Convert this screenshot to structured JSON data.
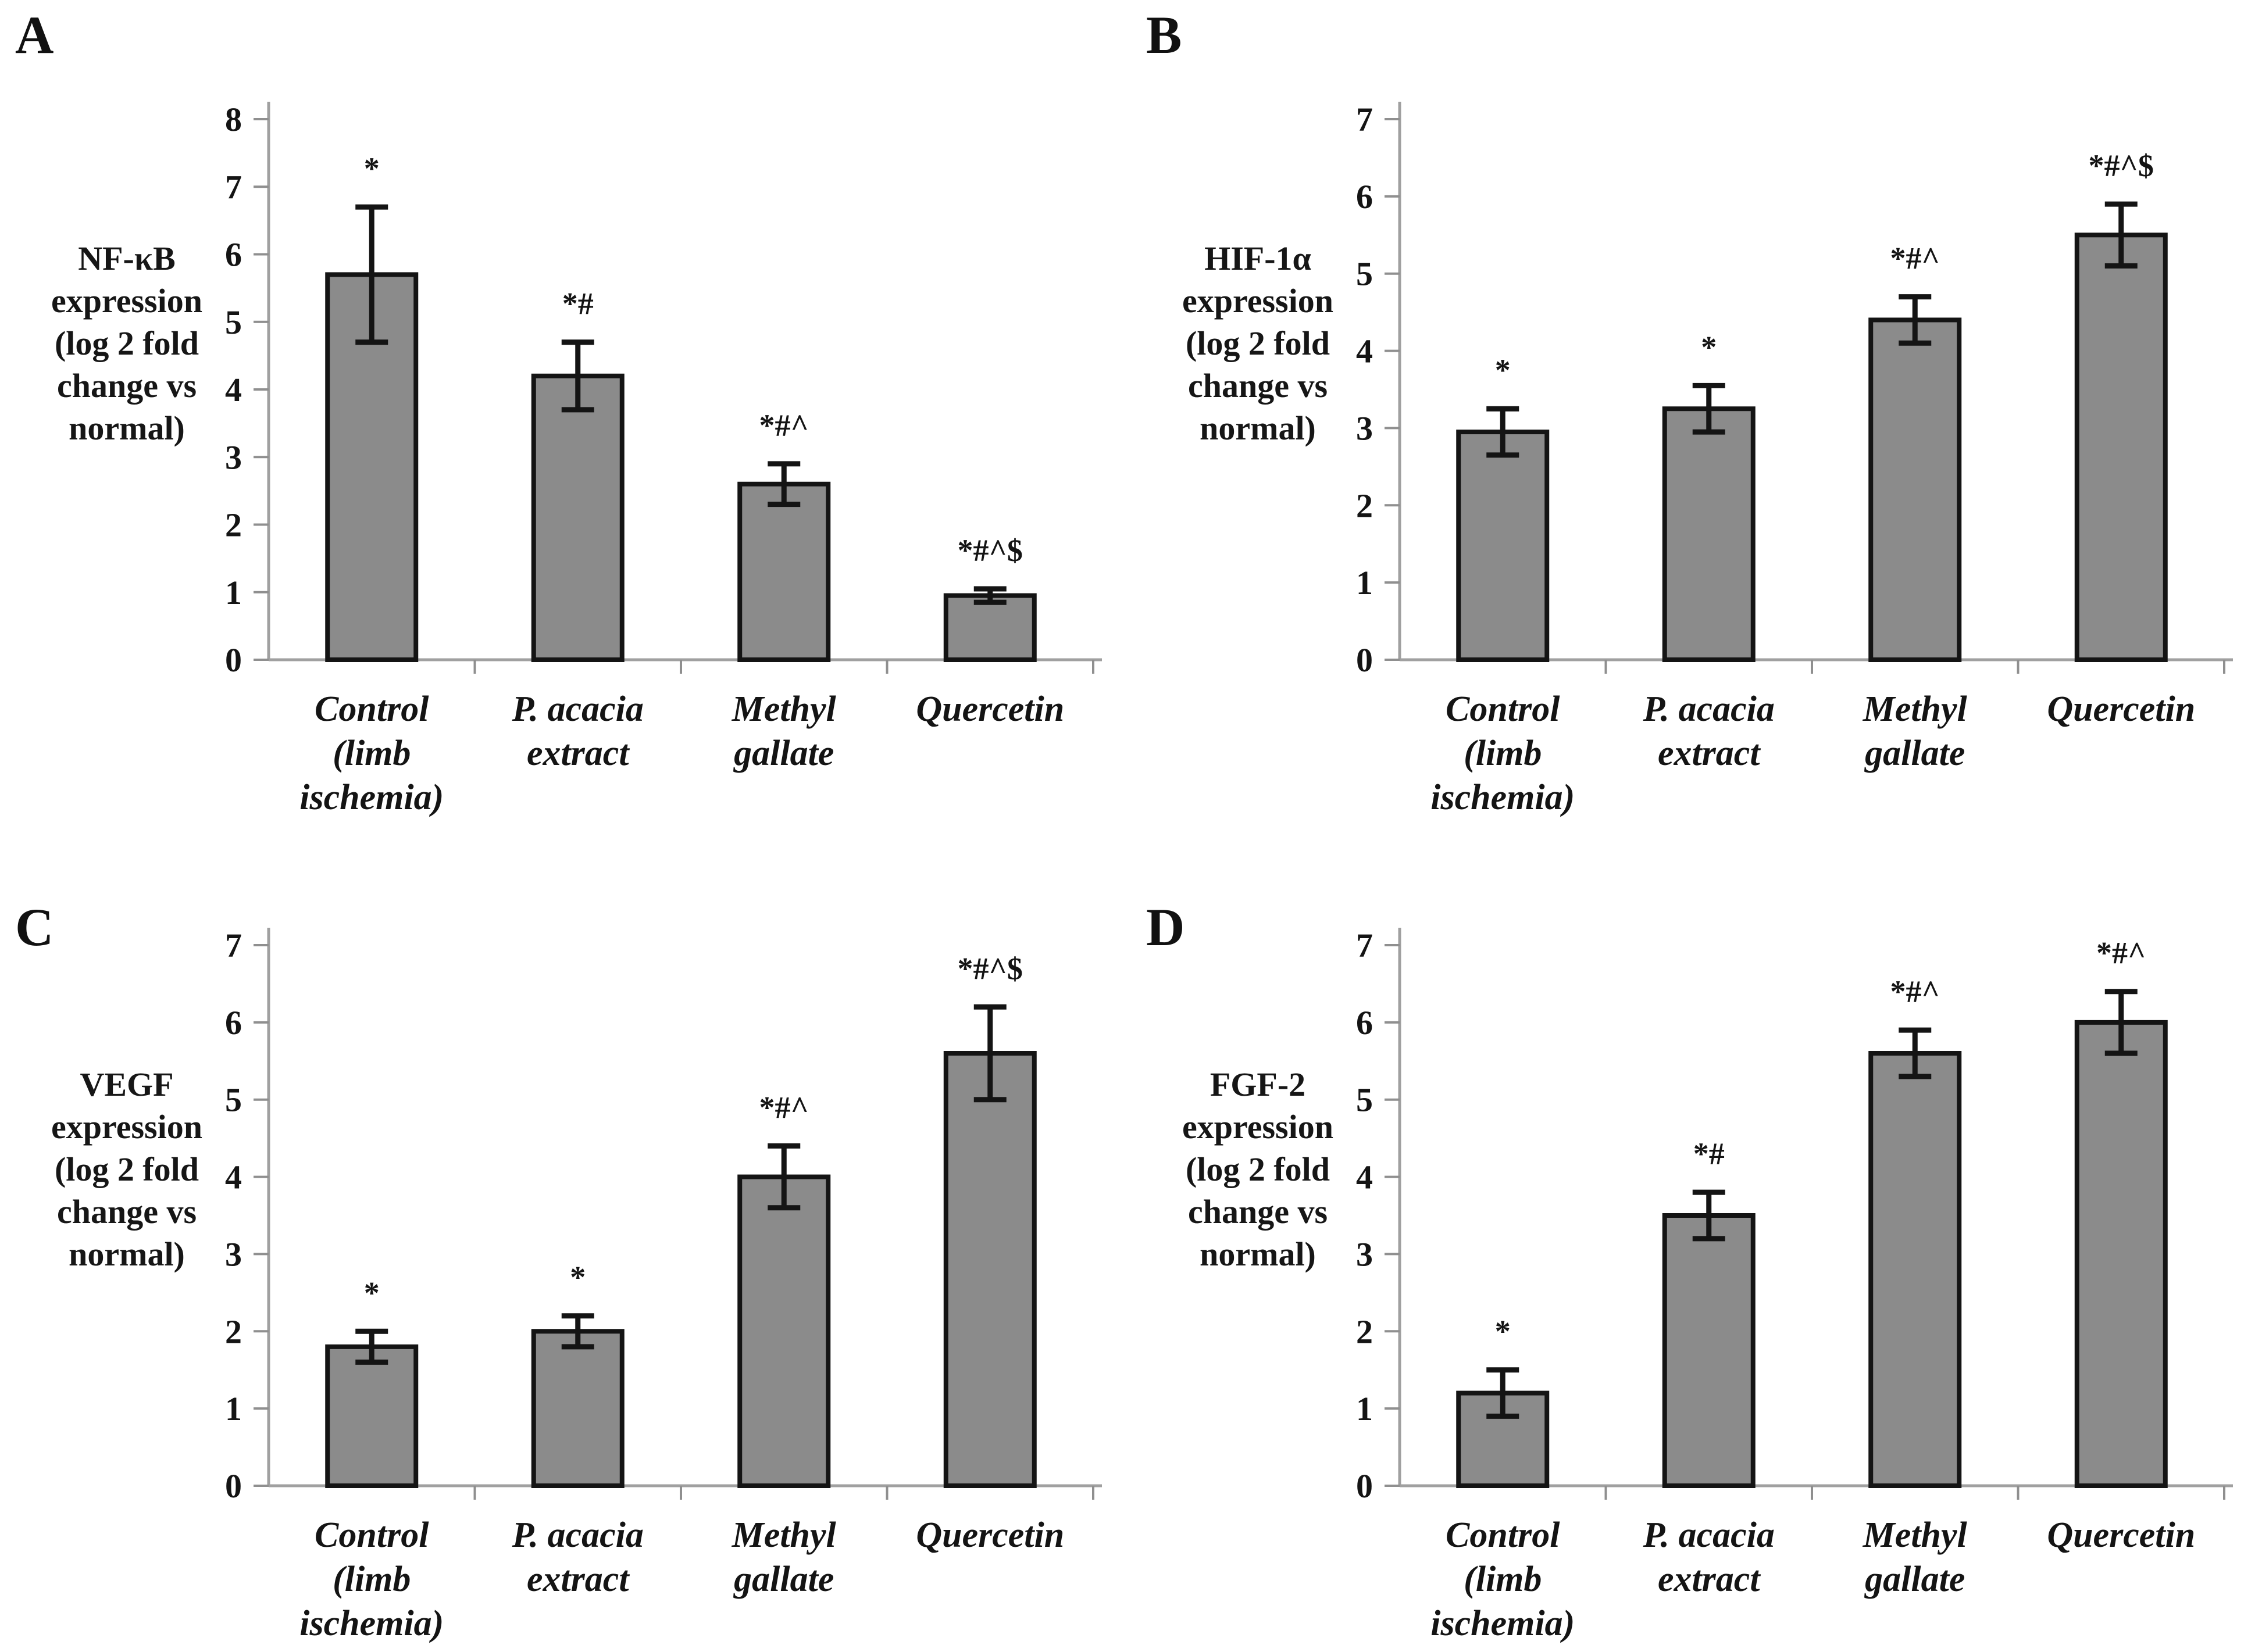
{
  "figure": {
    "background": "#ffffff",
    "description_visible_text_only": true
  },
  "colors": {
    "bar_fill": "#8b8b8b",
    "bar_border": "#141414",
    "error_bar": "#141414",
    "axis_line": "#a0a0a0",
    "tick_line": "#8f8f8f",
    "text": "#141414"
  },
  "categories": [
    "Control (limb ischemia)",
    "P. acacia extract",
    "Methyl gallate",
    "Quercetin"
  ],
  "category_label_lines": [
    [
      "Control",
      "(limb",
      "ischemia)"
    ],
    [
      "P. acacia",
      "extract"
    ],
    [
      "Methyl",
      "gallate"
    ],
    [
      "Quercetin"
    ]
  ],
  "chart_data": [
    {
      "panel_label": "A",
      "type": "bar",
      "title": "",
      "ylabel": "NF-κB expression (log 2 fold change vs normal)",
      "ylabel_lines": [
        "NF-κB",
        "expression",
        "(log 2 fold",
        "change vs",
        "normal)"
      ],
      "xlabel": "",
      "categories": [
        "Control (limb ischemia)",
        "P. acacia extract",
        "Methyl gallate",
        "Quercetin"
      ],
      "values": [
        5.7,
        4.2,
        2.6,
        0.95
      ],
      "errors": [
        1.0,
        0.5,
        0.3,
        0.1
      ],
      "annotations": [
        "*",
        "*#",
        "*#^",
        "*#^$"
      ],
      "ylim": [
        0,
        8
      ],
      "ytick_step": 1,
      "grid": false,
      "legend_position": "none"
    },
    {
      "panel_label": "B",
      "type": "bar",
      "title": "",
      "ylabel": "HIF-1α expression (log 2 fold change vs normal)",
      "ylabel_lines": [
        "HIF-1α",
        "expression",
        "(log 2 fold",
        "change vs",
        "normal)"
      ],
      "xlabel": "",
      "categories": [
        "Control (limb ischemia)",
        "P. acacia extract",
        "Methyl gallate",
        "Quercetin"
      ],
      "values": [
        2.95,
        3.25,
        4.4,
        5.5
      ],
      "errors": [
        0.3,
        0.3,
        0.3,
        0.4
      ],
      "annotations": [
        "*",
        "*",
        "*#^",
        "*#^$"
      ],
      "ylim": [
        0,
        7
      ],
      "ytick_step": 1,
      "grid": false,
      "legend_position": "none"
    },
    {
      "panel_label": "C",
      "type": "bar",
      "title": "",
      "ylabel": "VEGF expression (log 2 fold change vs normal)",
      "ylabel_lines": [
        "VEGF",
        "expression",
        "(log 2 fold",
        "change vs",
        "normal)"
      ],
      "xlabel": "",
      "categories": [
        "Control (limb ischemia)",
        "P. acacia extract",
        "Methyl gallate",
        "Quercetin"
      ],
      "values": [
        1.8,
        2.0,
        4.0,
        5.6
      ],
      "errors": [
        0.2,
        0.2,
        0.4,
        0.6
      ],
      "annotations": [
        "*",
        "*",
        "*#^",
        "*#^$"
      ],
      "ylim": [
        0,
        7
      ],
      "ytick_step": 1,
      "grid": false,
      "legend_position": "none"
    },
    {
      "panel_label": "D",
      "type": "bar",
      "title": "",
      "ylabel": "FGF-2 expression (log 2 fold change vs normal)",
      "ylabel_lines": [
        "FGF-2",
        "expression",
        "(log 2 fold",
        "change vs",
        "normal)"
      ],
      "xlabel": "",
      "categories": [
        "Control (limb ischemia)",
        "P. acacia extract",
        "Methyl gallate",
        "Quercetin"
      ],
      "values": [
        1.2,
        3.5,
        5.6,
        6.0
      ],
      "errors": [
        0.3,
        0.3,
        0.3,
        0.4
      ],
      "annotations": [
        "*",
        "*#",
        "*#^",
        "*#^"
      ],
      "ylim": [
        0,
        7
      ],
      "ytick_step": 1,
      "grid": false,
      "legend_position": "none"
    }
  ]
}
